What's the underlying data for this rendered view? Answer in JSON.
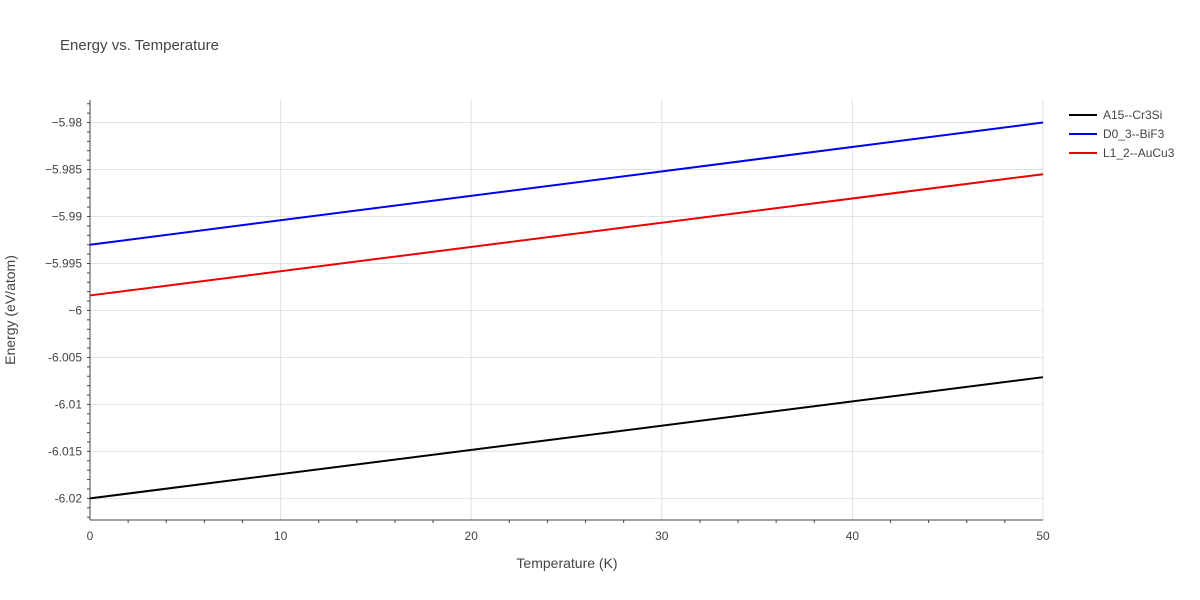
{
  "chart_data": {
    "type": "line",
    "title": "Energy vs. Temperature",
    "xlabel": "Temperature (K)",
    "ylabel": "Energy (eV/atom)",
    "xlim": [
      0,
      50
    ],
    "ylim": [
      -6.0223,
      -5.9776
    ],
    "x_ticks": [
      0,
      10,
      20,
      30,
      40,
      50
    ],
    "y_ticks": [
      -5.98,
      -5.985,
      -5.99,
      -5.995,
      -6.0,
      -6.005,
      -6.01,
      -6.015,
      -6.02
    ],
    "y_tick_labels": [
      "−5.98",
      "−5.985",
      "−5.99",
      "−5.995",
      "−6",
      "-6.005",
      "-6.01",
      "-6.015",
      "-6.02"
    ],
    "grid": true,
    "legend_position": "right",
    "series": [
      {
        "name": "A15--Cr3Si",
        "color": "#000000",
        "x": [
          0,
          50
        ],
        "y": [
          -6.02,
          -6.0071
        ]
      },
      {
        "name": "D0_3--BiF3",
        "color": "#0000ee",
        "x": [
          0,
          50
        ],
        "y": [
          -5.993,
          -5.98
        ]
      },
      {
        "name": "L1_2--AuCu3",
        "color": "#ee0000",
        "x": [
          0,
          50
        ],
        "y": [
          -5.9984,
          -5.9855
        ]
      }
    ]
  }
}
